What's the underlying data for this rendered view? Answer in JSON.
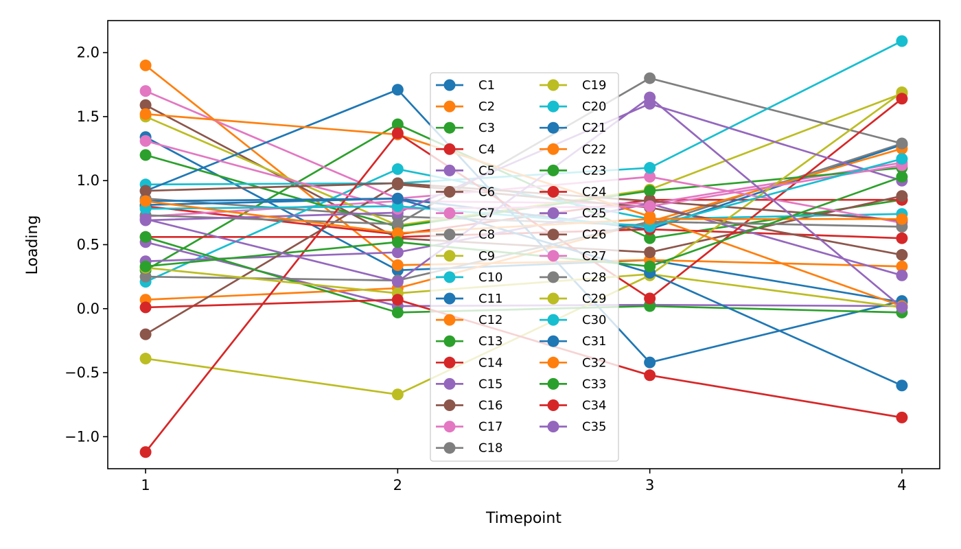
{
  "chart_data": {
    "type": "line",
    "title": "",
    "xlabel": "Timepoint",
    "ylabel": "Loading",
    "x": [
      1,
      2,
      3,
      4
    ],
    "xlim": [
      0.85,
      4.15
    ],
    "ylim": [
      -1.25,
      2.25
    ],
    "xticks": [
      "1",
      "2",
      "3",
      "4"
    ],
    "yticks": [
      "−1.0",
      "−0.5",
      "0.0",
      "0.5",
      "1.0",
      "1.5",
      "2.0"
    ],
    "ytick_values": [
      -1.0,
      -0.5,
      0.0,
      0.5,
      1.0,
      1.5,
      2.0
    ],
    "grid": false,
    "legend_position": "center",
    "legend_columns": 2,
    "palette": [
      "#1f77b4",
      "#ff7f0e",
      "#2ca02c",
      "#d62728",
      "#9467bd",
      "#8c564b",
      "#e377c2",
      "#7f7f7f",
      "#bcbd22",
      "#17becf"
    ],
    "series": [
      {
        "name": "C1",
        "values": [
          1.34,
          0.3,
          0.38,
          0.05
        ]
      },
      {
        "name": "C2",
        "values": [
          1.9,
          0.34,
          0.38,
          0.33
        ]
      },
      {
        "name": "C3",
        "values": [
          0.3,
          1.44,
          0.55,
          0.85
        ]
      },
      {
        "name": "C4",
        "values": [
          0.8,
          0.58,
          0.85,
          0.85
        ]
      },
      {
        "name": "C5",
        "values": [
          0.52,
          0.02,
          0.03,
          0.02
        ]
      },
      {
        "name": "C6",
        "values": [
          1.59,
          0.55,
          0.44,
          0.88
        ]
      },
      {
        "name": "C7",
        "values": [
          0.72,
          0.84,
          0.82,
          1.14
        ]
      },
      {
        "name": "C8",
        "values": [
          0.86,
          0.72,
          0.65,
          1.29
        ]
      },
      {
        "name": "C9",
        "values": [
          1.5,
          0.65,
          0.93,
          1.68
        ]
      },
      {
        "name": "C10",
        "values": [
          0.21,
          1.09,
          0.7,
          0.74
        ]
      },
      {
        "name": "C11",
        "values": [
          0.81,
          0.86,
          0.62,
          1.28
        ]
      },
      {
        "name": "C12",
        "values": [
          0.07,
          0.16,
          0.68,
          1.25
        ]
      },
      {
        "name": "C13",
        "values": [
          1.2,
          0.64,
          0.92,
          1.1
        ]
      },
      {
        "name": "C14",
        "values": [
          0.56,
          0.56,
          0.62,
          0.55
        ]
      },
      {
        "name": "C15",
        "values": [
          0.37,
          0.44,
          0.82,
          0.26
        ]
      },
      {
        "name": "C16",
        "values": [
          -0.2,
          0.97,
          0.79,
          0.42
        ]
      },
      {
        "name": "C17",
        "values": [
          1.7,
          0.86,
          1.03,
          0.67
        ]
      },
      {
        "name": "C18",
        "values": [
          0.73,
          0.66,
          1.8,
          1.29
        ]
      },
      {
        "name": "C19",
        "values": [
          -0.39,
          -0.67,
          0.26,
          1.69
        ]
      },
      {
        "name": "C20",
        "values": [
          0.97,
          0.98,
          1.1,
          2.09
        ]
      },
      {
        "name": "C21",
        "values": [
          0.92,
          1.71,
          -0.42,
          0.06
        ]
      },
      {
        "name": "C22",
        "values": [
          1.52,
          1.36,
          0.72,
          0.02
        ]
      },
      {
        "name": "C23",
        "values": [
          0.56,
          -0.03,
          0.02,
          -0.03
        ]
      },
      {
        "name": "C24",
        "values": [
          -1.12,
          1.37,
          0.08,
          1.64
        ]
      },
      {
        "name": "C25",
        "values": [
          0.69,
          0.75,
          1.6,
          1.0
        ]
      },
      {
        "name": "C26",
        "values": [
          0.92,
          0.98,
          0.84,
          0.69
        ]
      },
      {
        "name": "C27",
        "values": [
          1.31,
          0.78,
          0.8,
          1.12
        ]
      },
      {
        "name": "C28",
        "values": [
          0.25,
          0.22,
          0.68,
          0.64
        ]
      },
      {
        "name": "C29",
        "values": [
          0.32,
          0.12,
          0.27,
          0.01
        ]
      },
      {
        "name": "C30",
        "values": [
          0.78,
          0.8,
          0.64,
          1.17
        ]
      },
      {
        "name": "C31",
        "values": [
          0.84,
          0.86,
          0.28,
          -0.6
        ]
      },
      {
        "name": "C32",
        "values": [
          0.84,
          0.59,
          0.7,
          0.7
        ]
      },
      {
        "name": "C33",
        "values": [
          0.33,
          0.52,
          0.33,
          1.03
        ]
      },
      {
        "name": "C34",
        "values": [
          0.01,
          0.07,
          -0.52,
          -0.85
        ]
      },
      {
        "name": "C35",
        "values": [
          0.7,
          0.21,
          1.65,
          0.01
        ]
      }
    ]
  }
}
